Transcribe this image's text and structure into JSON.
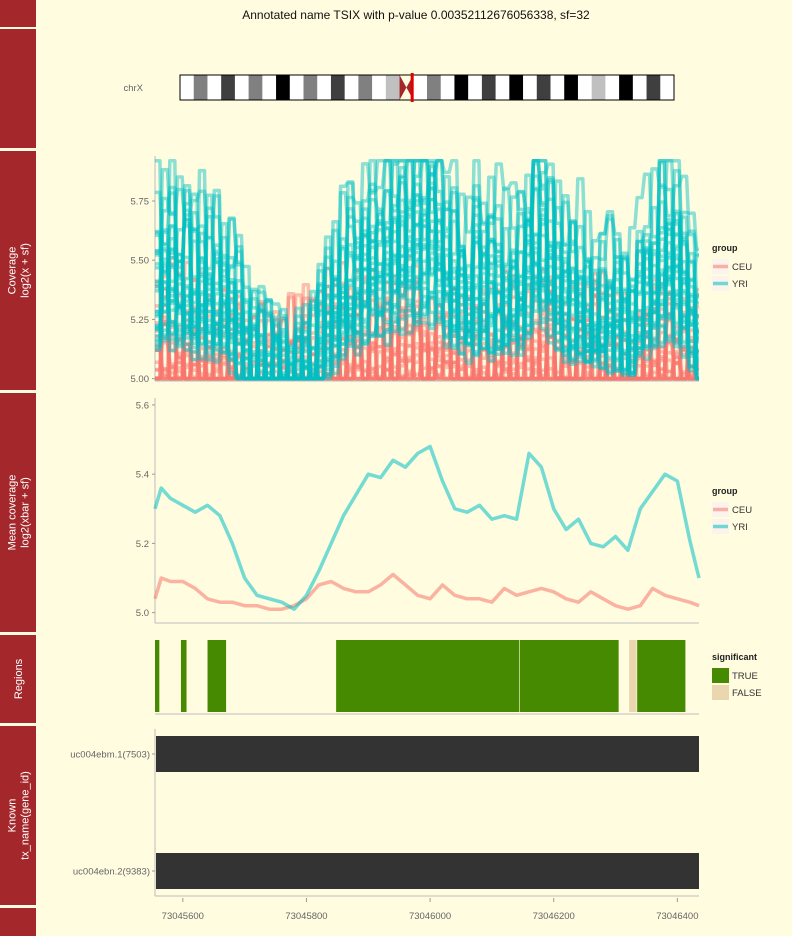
{
  "title": "Annotated name TSIX with p-value 0.00352112676056338, sf=32",
  "ideogram": {
    "chromosome": "chrX",
    "bands": [
      "w",
      "k3",
      "w",
      "k2",
      "w",
      "k3",
      "w",
      "k1",
      "w",
      "k3",
      "w",
      "k2",
      "w",
      "k3",
      "w",
      "k4",
      "cen",
      "w",
      "k3",
      "w",
      "k1",
      "w",
      "k2",
      "w",
      "k1",
      "w",
      "k2",
      "w",
      "k1",
      "w",
      "k4",
      "w",
      "k1",
      "w",
      "k2",
      "w"
    ],
    "highlight_position": 0.47
  },
  "colors": {
    "strip": "#a4282b",
    "ceu": "#f8766d",
    "yri": "#00bfc4",
    "significant_true": "#458a00",
    "significant_false": "#ead7b0",
    "transcript": "#333333",
    "background": "#fffce0"
  },
  "x_axis": {
    "ticks": [
      73045600,
      73045800,
      73046000,
      73046200,
      73046400
    ],
    "tick_labels": [
      "73045600",
      "73045800",
      "73046000",
      "73046200",
      "73046400"
    ],
    "range": [
      73045555,
      73046435
    ]
  },
  "chart_data": [
    {
      "type": "line",
      "panel": "coverage",
      "strip_label_lines": [
        "Coverage",
        "log2(x + sf)"
      ],
      "ylim": [
        4.99,
        5.94
      ],
      "yticks": [
        5.0,
        5.25,
        5.5,
        5.75
      ],
      "ytick_labels": [
        "5.00",
        "5.25",
        "5.50",
        "5.75"
      ],
      "legend": {
        "title": "group",
        "entries": [
          "CEU",
          "YRI"
        ]
      },
      "ceu_samples": 20,
      "yri_samples": 30,
      "seed": 7
    },
    {
      "type": "line",
      "panel": "mean_coverage",
      "strip_label_lines": [
        "Mean coverage",
        "log2(xbar + sf)"
      ],
      "ylim": [
        4.97,
        5.62
      ],
      "yticks": [
        5.0,
        5.2,
        5.4,
        5.6
      ],
      "ytick_labels": [
        "5.0",
        "5.2",
        "5.4",
        "5.6"
      ],
      "legend": {
        "title": "group",
        "entries": [
          "CEU",
          "YRI"
        ]
      },
      "series": [
        {
          "name": "CEU",
          "x": [
            73045555,
            73045565,
            73045580,
            73045600,
            73045620,
            73045640,
            73045660,
            73045680,
            73045700,
            73045720,
            73045740,
            73045760,
            73045780,
            73045800,
            73045820,
            73045840,
            73045860,
            73045880,
            73045900,
            73045920,
            73045940,
            73045960,
            73045980,
            73046000,
            73046020,
            73046040,
            73046060,
            73046080,
            73046100,
            73046120,
            73046140,
            73046160,
            73046180,
            73046200,
            73046220,
            73046240,
            73046260,
            73046280,
            73046300,
            73046320,
            73046340,
            73046360,
            73046380,
            73046400,
            73046420,
            73046435
          ],
          "y": [
            5.04,
            5.1,
            5.09,
            5.09,
            5.07,
            5.04,
            5.03,
            5.03,
            5.02,
            5.02,
            5.01,
            5.01,
            5.02,
            5.04,
            5.08,
            5.09,
            5.07,
            5.06,
            5.06,
            5.08,
            5.11,
            5.08,
            5.05,
            5.04,
            5.08,
            5.05,
            5.04,
            5.04,
            5.03,
            5.07,
            5.05,
            5.06,
            5.07,
            5.06,
            5.04,
            5.03,
            5.06,
            5.04,
            5.02,
            5.01,
            5.02,
            5.07,
            5.05,
            5.04,
            5.03,
            5.02
          ]
        },
        {
          "name": "YRI",
          "x": [
            73045555,
            73045565,
            73045580,
            73045600,
            73045620,
            73045640,
            73045660,
            73045680,
            73045700,
            73045720,
            73045740,
            73045760,
            73045780,
            73045800,
            73045820,
            73045840,
            73045860,
            73045880,
            73045900,
            73045920,
            73045940,
            73045960,
            73045980,
            73046000,
            73046020,
            73046040,
            73046060,
            73046080,
            73046100,
            73046120,
            73046140,
            73046160,
            73046180,
            73046200,
            73046220,
            73046240,
            73046260,
            73046280,
            73046300,
            73046320,
            73046340,
            73046360,
            73046380,
            73046400,
            73046420,
            73046435
          ],
          "y": [
            5.3,
            5.36,
            5.33,
            5.31,
            5.29,
            5.31,
            5.28,
            5.2,
            5.1,
            5.05,
            5.04,
            5.03,
            5.01,
            5.05,
            5.12,
            5.2,
            5.28,
            5.34,
            5.4,
            5.39,
            5.44,
            5.42,
            5.46,
            5.48,
            5.38,
            5.3,
            5.29,
            5.31,
            5.27,
            5.28,
            5.27,
            5.46,
            5.42,
            5.3,
            5.24,
            5.27,
            5.2,
            5.19,
            5.22,
            5.18,
            5.3,
            5.35,
            5.4,
            5.38,
            5.21,
            5.1
          ]
        }
      ]
    },
    {
      "type": "bar",
      "panel": "regions",
      "strip_label_lines": [
        "Regions"
      ],
      "legend": {
        "title": "significant",
        "entries": [
          "TRUE",
          "FALSE"
        ]
      },
      "regions": [
        {
          "start": 73045555,
          "end": 73045562,
          "significant": true
        },
        {
          "start": 73045597,
          "end": 73045606,
          "significant": true
        },
        {
          "start": 73045640,
          "end": 73045670,
          "significant": true
        },
        {
          "start": 73045848,
          "end": 73046144,
          "significant": true
        },
        {
          "start": 73046145,
          "end": 73046305,
          "significant": true
        },
        {
          "start": 73046322,
          "end": 73046334,
          "significant": false
        },
        {
          "start": 73046335,
          "end": 73046413,
          "significant": true
        }
      ]
    },
    {
      "type": "bar",
      "panel": "known",
      "strip_label_lines": [
        "Known",
        "tx_name(gene_id)"
      ],
      "transcripts": [
        {
          "name": "uc004ebm.1(7503)",
          "start": 73045555,
          "end": 73046435
        },
        {
          "name": "uc004ebn.2(9383)",
          "start": 73045555,
          "end": 73046435
        }
      ]
    }
  ]
}
